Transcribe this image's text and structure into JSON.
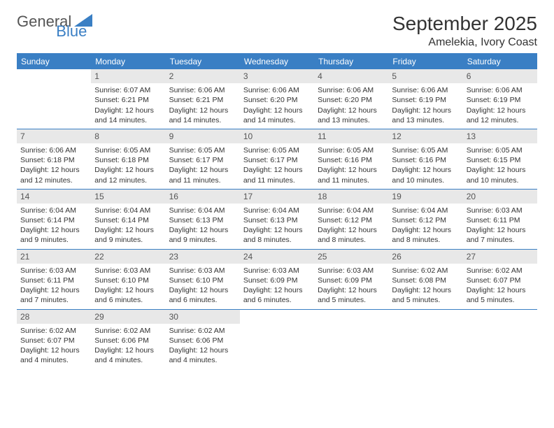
{
  "logo": {
    "text1": "General",
    "text2": "Blue"
  },
  "header": {
    "month": "September 2025",
    "location": "Amelekia, Ivory Coast"
  },
  "dayNames": [
    "Sunday",
    "Monday",
    "Tuesday",
    "Wednesday",
    "Thursday",
    "Friday",
    "Saturday"
  ],
  "colors": {
    "accent": "#3a7fc4",
    "headerText": "#ffffff",
    "cellNumBg": "#e8e8e8",
    "text": "#333333",
    "background": "#ffffff"
  },
  "typography": {
    "monthTitleSize": 28,
    "locationSize": 16,
    "dayHeaderSize": 12,
    "cellTextSize": 10.5
  },
  "weeks": [
    [
      {
        "n": "",
        "sunrise": "",
        "sunset": "",
        "daylight": ""
      },
      {
        "n": "1",
        "sunrise": "Sunrise: 6:07 AM",
        "sunset": "Sunset: 6:21 PM",
        "daylight": "Daylight: 12 hours and 14 minutes."
      },
      {
        "n": "2",
        "sunrise": "Sunrise: 6:06 AM",
        "sunset": "Sunset: 6:21 PM",
        "daylight": "Daylight: 12 hours and 14 minutes."
      },
      {
        "n": "3",
        "sunrise": "Sunrise: 6:06 AM",
        "sunset": "Sunset: 6:20 PM",
        "daylight": "Daylight: 12 hours and 14 minutes."
      },
      {
        "n": "4",
        "sunrise": "Sunrise: 6:06 AM",
        "sunset": "Sunset: 6:20 PM",
        "daylight": "Daylight: 12 hours and 13 minutes."
      },
      {
        "n": "5",
        "sunrise": "Sunrise: 6:06 AM",
        "sunset": "Sunset: 6:19 PM",
        "daylight": "Daylight: 12 hours and 13 minutes."
      },
      {
        "n": "6",
        "sunrise": "Sunrise: 6:06 AM",
        "sunset": "Sunset: 6:19 PM",
        "daylight": "Daylight: 12 hours and 12 minutes."
      }
    ],
    [
      {
        "n": "7",
        "sunrise": "Sunrise: 6:06 AM",
        "sunset": "Sunset: 6:18 PM",
        "daylight": "Daylight: 12 hours and 12 minutes."
      },
      {
        "n": "8",
        "sunrise": "Sunrise: 6:05 AM",
        "sunset": "Sunset: 6:18 PM",
        "daylight": "Daylight: 12 hours and 12 minutes."
      },
      {
        "n": "9",
        "sunrise": "Sunrise: 6:05 AM",
        "sunset": "Sunset: 6:17 PM",
        "daylight": "Daylight: 12 hours and 11 minutes."
      },
      {
        "n": "10",
        "sunrise": "Sunrise: 6:05 AM",
        "sunset": "Sunset: 6:17 PM",
        "daylight": "Daylight: 12 hours and 11 minutes."
      },
      {
        "n": "11",
        "sunrise": "Sunrise: 6:05 AM",
        "sunset": "Sunset: 6:16 PM",
        "daylight": "Daylight: 12 hours and 11 minutes."
      },
      {
        "n": "12",
        "sunrise": "Sunrise: 6:05 AM",
        "sunset": "Sunset: 6:16 PM",
        "daylight": "Daylight: 12 hours and 10 minutes."
      },
      {
        "n": "13",
        "sunrise": "Sunrise: 6:05 AM",
        "sunset": "Sunset: 6:15 PM",
        "daylight": "Daylight: 12 hours and 10 minutes."
      }
    ],
    [
      {
        "n": "14",
        "sunrise": "Sunrise: 6:04 AM",
        "sunset": "Sunset: 6:14 PM",
        "daylight": "Daylight: 12 hours and 9 minutes."
      },
      {
        "n": "15",
        "sunrise": "Sunrise: 6:04 AM",
        "sunset": "Sunset: 6:14 PM",
        "daylight": "Daylight: 12 hours and 9 minutes."
      },
      {
        "n": "16",
        "sunrise": "Sunrise: 6:04 AM",
        "sunset": "Sunset: 6:13 PM",
        "daylight": "Daylight: 12 hours and 9 minutes."
      },
      {
        "n": "17",
        "sunrise": "Sunrise: 6:04 AM",
        "sunset": "Sunset: 6:13 PM",
        "daylight": "Daylight: 12 hours and 8 minutes."
      },
      {
        "n": "18",
        "sunrise": "Sunrise: 6:04 AM",
        "sunset": "Sunset: 6:12 PM",
        "daylight": "Daylight: 12 hours and 8 minutes."
      },
      {
        "n": "19",
        "sunrise": "Sunrise: 6:04 AM",
        "sunset": "Sunset: 6:12 PM",
        "daylight": "Daylight: 12 hours and 8 minutes."
      },
      {
        "n": "20",
        "sunrise": "Sunrise: 6:03 AM",
        "sunset": "Sunset: 6:11 PM",
        "daylight": "Daylight: 12 hours and 7 minutes."
      }
    ],
    [
      {
        "n": "21",
        "sunrise": "Sunrise: 6:03 AM",
        "sunset": "Sunset: 6:11 PM",
        "daylight": "Daylight: 12 hours and 7 minutes."
      },
      {
        "n": "22",
        "sunrise": "Sunrise: 6:03 AM",
        "sunset": "Sunset: 6:10 PM",
        "daylight": "Daylight: 12 hours and 6 minutes."
      },
      {
        "n": "23",
        "sunrise": "Sunrise: 6:03 AM",
        "sunset": "Sunset: 6:10 PM",
        "daylight": "Daylight: 12 hours and 6 minutes."
      },
      {
        "n": "24",
        "sunrise": "Sunrise: 6:03 AM",
        "sunset": "Sunset: 6:09 PM",
        "daylight": "Daylight: 12 hours and 6 minutes."
      },
      {
        "n": "25",
        "sunrise": "Sunrise: 6:03 AM",
        "sunset": "Sunset: 6:09 PM",
        "daylight": "Daylight: 12 hours and 5 minutes."
      },
      {
        "n": "26",
        "sunrise": "Sunrise: 6:02 AM",
        "sunset": "Sunset: 6:08 PM",
        "daylight": "Daylight: 12 hours and 5 minutes."
      },
      {
        "n": "27",
        "sunrise": "Sunrise: 6:02 AM",
        "sunset": "Sunset: 6:07 PM",
        "daylight": "Daylight: 12 hours and 5 minutes."
      }
    ],
    [
      {
        "n": "28",
        "sunrise": "Sunrise: 6:02 AM",
        "sunset": "Sunset: 6:07 PM",
        "daylight": "Daylight: 12 hours and 4 minutes."
      },
      {
        "n": "29",
        "sunrise": "Sunrise: 6:02 AM",
        "sunset": "Sunset: 6:06 PM",
        "daylight": "Daylight: 12 hours and 4 minutes."
      },
      {
        "n": "30",
        "sunrise": "Sunrise: 6:02 AM",
        "sunset": "Sunset: 6:06 PM",
        "daylight": "Daylight: 12 hours and 4 minutes."
      },
      {
        "n": "",
        "sunrise": "",
        "sunset": "",
        "daylight": ""
      },
      {
        "n": "",
        "sunrise": "",
        "sunset": "",
        "daylight": ""
      },
      {
        "n": "",
        "sunrise": "",
        "sunset": "",
        "daylight": ""
      },
      {
        "n": "",
        "sunrise": "",
        "sunset": "",
        "daylight": ""
      }
    ]
  ]
}
